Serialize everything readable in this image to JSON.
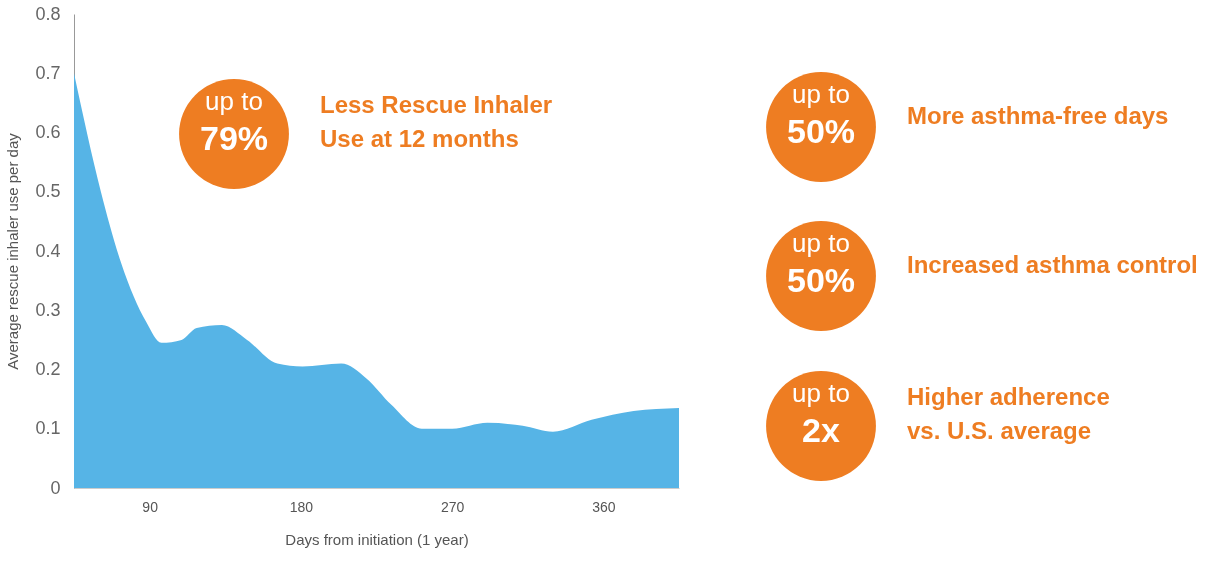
{
  "chart_data": {
    "type": "area",
    "xlabel": "Days from initiation (1 year)",
    "ylabel": "Average rescue inhaler use per day",
    "x": [
      45,
      61,
      73,
      88,
      97,
      109,
      118,
      133,
      148,
      166,
      181,
      204,
      219,
      234,
      252,
      270,
      291,
      312,
      330,
      353,
      378,
      405
    ],
    "series": [
      {
        "color": "#56b4e6",
        "values": [
          0.7,
          0.5,
          0.38,
          0.28,
          0.245,
          0.25,
          0.27,
          0.275,
          0.25,
          0.21,
          0.205,
          0.21,
          0.185,
          0.14,
          0.1,
          0.1,
          0.11,
          0.105,
          0.095,
          0.115,
          0.13,
          0.135
        ]
      }
    ],
    "xlim": [
      45,
      405
    ],
    "xticks": [
      90,
      180,
      270,
      360
    ],
    "ylim": [
      0,
      0.8
    ],
    "yticks": [
      0,
      0.1,
      0.2,
      0.3,
      0.4,
      0.5,
      0.6,
      0.7,
      0.8
    ],
    "grid": false,
    "annotations": [
      "up to",
      "79%",
      "Less Rescue Inhaler",
      "Use at 12 months",
      "up to",
      "50%",
      "More asthma-free days",
      "up to",
      "50%",
      "Increased asthma control",
      "up to",
      "2x",
      "Higher adherence",
      "vs. U.S. average"
    ]
  }
}
